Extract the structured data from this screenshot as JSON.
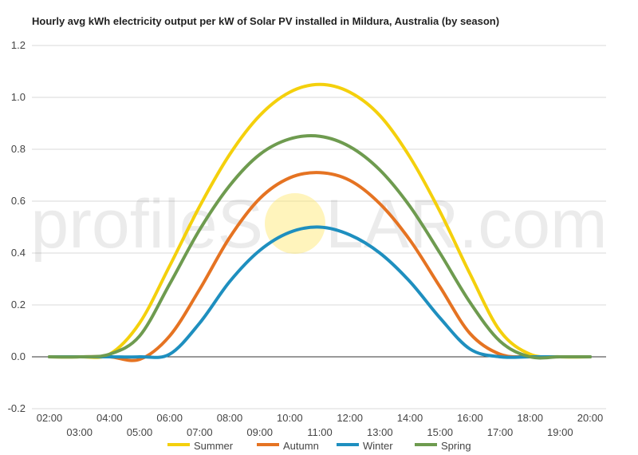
{
  "chart_data": {
    "type": "line",
    "title": "Hourly avg kWh electricity output per kW of Solar PV installed in Mildura, Australia (by season)",
    "xlabel": "",
    "ylabel": "",
    "x": [
      "02:00",
      "03:00",
      "04:00",
      "05:00",
      "06:00",
      "07:00",
      "08:00",
      "09:00",
      "10:00",
      "11:00",
      "12:00",
      "13:00",
      "14:00",
      "15:00",
      "16:00",
      "17:00",
      "18:00",
      "19:00",
      "20:00"
    ],
    "ylim": [
      -0.2,
      1.2
    ],
    "yticks": [
      "-0.2",
      "0.0",
      "0.2",
      "0.4",
      "0.6",
      "0.8",
      "1.0",
      "1.2"
    ],
    "grid": true,
    "legend": "bottom",
    "series": [
      {
        "name": "Summer",
        "color": "#f4d00c",
        "values": [
          0.0,
          0.0,
          0.01,
          0.13,
          0.35,
          0.58,
          0.78,
          0.93,
          1.02,
          1.05,
          1.02,
          0.93,
          0.77,
          0.56,
          0.32,
          0.1,
          0.01,
          0.0,
          0.0
        ]
      },
      {
        "name": "Autumn",
        "color": "#e57322",
        "values": [
          0.0,
          0.0,
          0.0,
          -0.01,
          0.08,
          0.26,
          0.46,
          0.61,
          0.69,
          0.71,
          0.68,
          0.59,
          0.45,
          0.27,
          0.09,
          0.01,
          0.0,
          0.0,
          0.0
        ]
      },
      {
        "name": "Winter",
        "color": "#1e8fbf",
        "values": [
          0.0,
          0.0,
          0.0,
          0.0,
          0.01,
          0.13,
          0.29,
          0.41,
          0.48,
          0.5,
          0.47,
          0.4,
          0.29,
          0.15,
          0.03,
          0.0,
          0.0,
          0.0,
          0.0
        ]
      },
      {
        "name": "Spring",
        "color": "#6e9b4f",
        "values": [
          0.0,
          0.0,
          0.01,
          0.08,
          0.28,
          0.49,
          0.66,
          0.78,
          0.84,
          0.85,
          0.81,
          0.72,
          0.58,
          0.4,
          0.21,
          0.06,
          0.0,
          0.0,
          0.0
        ]
      }
    ]
  },
  "watermark": {
    "text_left": "profileS",
    "text_right": "LAR.com",
    "sun_color": "#ffe66a"
  }
}
